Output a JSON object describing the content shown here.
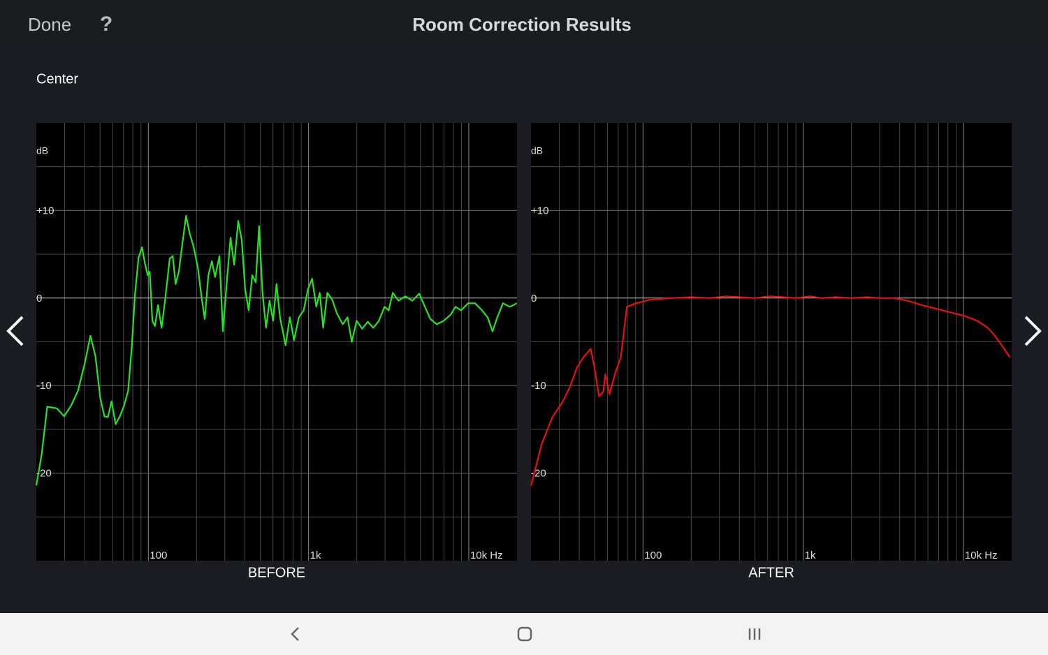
{
  "header": {
    "done": "Done",
    "help": "?",
    "title": "Room Correction Results"
  },
  "channel": "Center",
  "chart_data": [
    {
      "type": "line",
      "x_scale": "log",
      "x_label": "BEFORE",
      "y_label": "dB",
      "xlim": [
        20,
        20000
      ],
      "ylim": [
        -30,
        20
      ],
      "xticks": [
        100,
        {
          "value": 1000,
          "label": "1k"
        },
        {
          "value": 10000,
          "label": "10k Hz"
        }
      ],
      "xminor": [
        30,
        40,
        50,
        60,
        70,
        80,
        90,
        200,
        300,
        400,
        500,
        600,
        700,
        800,
        900,
        2000,
        3000,
        4000,
        5000,
        6000,
        7000,
        8000,
        9000
      ],
      "yticks": [
        {
          "value": 10,
          "label": "+10"
        },
        0,
        -10,
        -20
      ],
      "yminor": [
        15,
        5,
        -5,
        -15,
        -25
      ],
      "grid": true,
      "x": [
        20,
        21.6,
        23.4,
        26.9,
        29.8,
        32.9,
        36.4,
        40.2,
        43.5,
        46.7,
        50.1,
        53.2,
        56,
        58.9,
        62.5,
        66.4,
        70.5,
        74.8,
        78.7,
        82.7,
        86.9,
        91.4,
        95.1,
        99,
        102,
        106,
        110,
        115,
        121,
        128,
        136,
        142,
        148,
        155,
        163,
        172,
        181,
        192,
        204,
        216,
        225,
        237,
        249,
        261,
        278,
        292,
        310,
        326,
        343,
        364,
        383,
        402,
        423,
        445,
        468,
        491,
        516,
        543,
        571,
        600,
        631,
        664,
        719,
        764,
        811,
        870,
        933,
        991,
        1052,
        1117,
        1174,
        1234,
        1310,
        1405,
        1507,
        1633,
        1751,
        1861,
        1995,
        2162,
        2343,
        2536,
        2748,
        2978,
        3162,
        3357,
        3638,
        4018,
        4443,
        4911,
        5321,
        5765,
        6310,
        6974,
        7709,
        8262,
        8954,
        9904,
        10940,
        12100,
        13100,
        14060,
        15070,
        16330,
        18060,
        19950
      ],
      "series": [
        {
          "color": "#22e61e",
          "values": [
            -21.4,
            -17.8,
            -12.4,
            -12.6,
            -13.5,
            -12.3,
            -10.6,
            -7.4,
            -4.3,
            -6.6,
            -11.4,
            -13.5,
            -13.6,
            -11.8,
            -14.4,
            -13.5,
            -12.3,
            -10.6,
            -5.8,
            0.6,
            4.6,
            5.8,
            4.0,
            2.6,
            3.0,
            -2.6,
            -3.2,
            -0.8,
            -3.4,
            0.2,
            4.5,
            4.8,
            1.6,
            3.0,
            6.2,
            9.4,
            7.4,
            5.8,
            3.4,
            -0.2,
            -2.4,
            2.6,
            4.2,
            2.4,
            4.8,
            -3.8,
            2.2,
            6.9,
            3.8,
            8.8,
            6.6,
            1.0,
            -1.4,
            2.6,
            1.8,
            8.2,
            0.6,
            -3.4,
            -0.3,
            -2.6,
            1.6,
            -2.2,
            -5.4,
            -2.2,
            -4.8,
            -2.2,
            -1.4,
            1.0,
            2.2,
            -1.0,
            0.6,
            -3.4,
            0.6,
            -0.2,
            -1.8,
            -3.0,
            -2.2,
            -5.0,
            -2.6,
            -3.5,
            -2.7,
            -3.4,
            -2.6,
            -1.0,
            -1.4,
            0.6,
            -0.3,
            0.2,
            -0.3,
            0.5,
            -1.0,
            -2.4,
            -3.0,
            -2.6,
            -1.9,
            -1.0,
            -1.4,
            -0.6,
            -0.6,
            -1.4,
            -2.2,
            -3.8,
            -2.2,
            -0.6,
            -1.0,
            -0.6
          ]
        }
      ]
    },
    {
      "type": "line",
      "x_scale": "log",
      "x_label": "AFTER",
      "y_label": "dB",
      "xlim": [
        20,
        20000
      ],
      "ylim": [
        -30,
        20
      ],
      "xticks": [
        100,
        {
          "value": 1000,
          "label": "1k"
        },
        {
          "value": 10000,
          "label": "10k Hz"
        }
      ],
      "xminor": [
        30,
        40,
        50,
        60,
        70,
        80,
        90,
        200,
        300,
        400,
        500,
        600,
        700,
        800,
        900,
        2000,
        3000,
        4000,
        5000,
        6000,
        7000,
        8000,
        9000
      ],
      "yticks": [
        {
          "value": 10,
          "label": "+10"
        },
        0,
        -10,
        -20
      ],
      "yminor": [
        15,
        5,
        -5,
        -15,
        -25
      ],
      "grid": true,
      "x": [
        20,
        23.4,
        27.2,
        31.6,
        34.9,
        38.6,
        42.7,
        47.2,
        49.6,
        53.2,
        56.5,
        58.2,
        61.8,
        67,
        72.6,
        79.4,
        90.5,
        110,
        149,
        200,
        260,
        330,
        400,
        500,
        620,
        750,
        900,
        1100,
        1300,
        1600,
        2000,
        2500,
        3000,
        3674,
        4487,
        5483,
        6700,
        8184,
        10000,
        12220,
        14190,
        15700,
        17350,
        19550
      ],
      "series": [
        {
          "color": "#e8100f",
          "values": [
            -21.4,
            -16.6,
            -13.6,
            -11.8,
            -10.2,
            -8.0,
            -6.7,
            -5.8,
            -7.8,
            -11.2,
            -10.7,
            -8.7,
            -11.0,
            -8.6,
            -6.8,
            -1.0,
            -0.6,
            -0.2,
            0,
            0.1,
            0,
            0.2,
            0.1,
            0,
            0.2,
            0.1,
            0,
            0.2,
            0,
            0.1,
            0,
            0.1,
            0,
            0,
            -0.3,
            -0.8,
            -1.2,
            -1.6,
            -2.0,
            -2.6,
            -3.4,
            -4.3,
            -5.4,
            -6.8
          ]
        }
      ]
    }
  ]
}
